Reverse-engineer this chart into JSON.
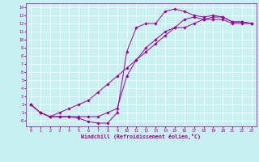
{
  "xlabel": "Windchill (Refroidissement éolien,°C)",
  "bg_color": "#c8f0f0",
  "grid_color": "#ffffff",
  "line_color": "#990099",
  "marker_color": "#990099",
  "xlim": [
    -0.5,
    23.5
  ],
  "ylim": [
    -0.7,
    14.5
  ],
  "xticks": [
    0,
    1,
    2,
    3,
    4,
    5,
    6,
    7,
    8,
    9,
    10,
    11,
    12,
    13,
    14,
    15,
    16,
    17,
    18,
    19,
    20,
    21,
    22,
    23
  ],
  "yticks": [
    0,
    1,
    2,
    3,
    4,
    5,
    6,
    7,
    8,
    9,
    10,
    11,
    12,
    13,
    14
  ],
  "ytick_labels": [
    "-0",
    "1",
    "2",
    "3",
    "4",
    "5",
    "6",
    "7",
    "8",
    "9",
    "10",
    "11",
    "12",
    "13",
    "14"
  ],
  "series1_x": [
    0,
    1,
    2,
    3,
    4,
    5,
    6,
    7,
    8,
    9,
    10,
    11,
    12,
    13,
    14,
    15,
    16,
    17,
    18,
    19,
    20,
    21,
    22,
    23
  ],
  "series1_y": [
    2,
    1,
    0.5,
    0.5,
    0.5,
    0.3,
    -0.1,
    -0.3,
    -0.3,
    1.0,
    8.5,
    11.5,
    12,
    12,
    13.5,
    13.8,
    13.5,
    13.0,
    12.8,
    13.0,
    12.8,
    12.2,
    12.2,
    12.0
  ],
  "series2_x": [
    0,
    1,
    2,
    3,
    4,
    5,
    6,
    7,
    8,
    9,
    10,
    11,
    12,
    13,
    14,
    15,
    16,
    17,
    18,
    19,
    20,
    21,
    22,
    23
  ],
  "series2_y": [
    2,
    1,
    0.5,
    1.0,
    1.5,
    2.0,
    2.5,
    3.5,
    4.5,
    5.5,
    6.5,
    7.5,
    8.5,
    9.5,
    10.5,
    11.5,
    12.5,
    12.8,
    12.5,
    12.8,
    12.8,
    12.2,
    12.2,
    12.0
  ],
  "series3_x": [
    0,
    1,
    2,
    3,
    4,
    5,
    6,
    7,
    8,
    9,
    10,
    11,
    12,
    13,
    14,
    15,
    16,
    17,
    18,
    19,
    20,
    21,
    22,
    23
  ],
  "series3_y": [
    2,
    1,
    0.5,
    0.5,
    0.5,
    0.5,
    0.5,
    0.5,
    1.0,
    1.5,
    5.5,
    7.5,
    9.0,
    10.0,
    11.0,
    11.5,
    11.5,
    12.0,
    12.5,
    12.5,
    12.5,
    12.0,
    12.0,
    12.0
  ]
}
